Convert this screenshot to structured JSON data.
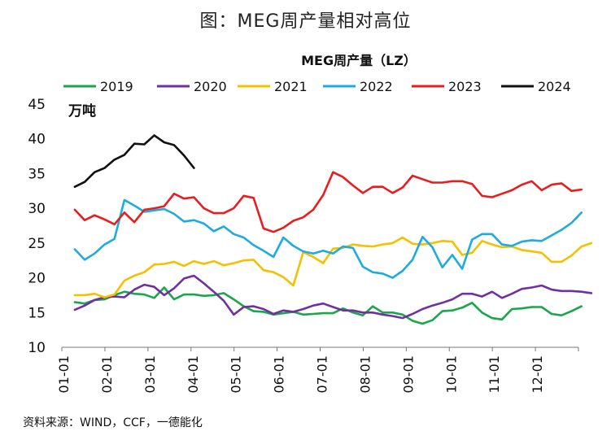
{
  "page_title": "图：MEG周产量相对高位",
  "source": "资料来源：WIND，CCF，一德能化",
  "chart_data": {
    "type": "line",
    "title": "MEG周产量（LZ）",
    "unit": "万吨",
    "ylim": [
      10,
      45
    ],
    "yticks": [
      10,
      15,
      20,
      25,
      30,
      35,
      40,
      45
    ],
    "xlabels": [
      "01-01",
      "02-01",
      "03-01",
      "04-01",
      "05-01",
      "06-01",
      "07-01",
      "08-01",
      "09-01",
      "10-01",
      "11-01",
      "12-01"
    ],
    "x_domain": [
      0,
      12
    ],
    "legend": [
      "2019",
      "2020",
      "2021",
      "2022",
      "2023",
      "2024"
    ],
    "series": [
      {
        "name": "2019",
        "color": "#1aa64a",
        "values": [
          16.5,
          16.3,
          16.8,
          16.9,
          17.5,
          18.0,
          17.7,
          17.6,
          17.1,
          18.6,
          16.9,
          17.6,
          17.6,
          17.4,
          17.5,
          17.8,
          16.9,
          15.9,
          15.2,
          15.1,
          14.7,
          14.9,
          15.1,
          14.7,
          14.8,
          14.9,
          14.9,
          15.6,
          15.0,
          14.6,
          15.9,
          15.0,
          15.0,
          14.7,
          13.8,
          13.4,
          13.9,
          15.2,
          15.3,
          15.7,
          16.4,
          15.0,
          14.2,
          14.0,
          15.5,
          15.6,
          15.8,
          15.8,
          14.8,
          14.6,
          15.2,
          15.9
        ]
      },
      {
        "name": "2020",
        "color": "#7030a0",
        "values": [
          15.4,
          16.0,
          16.8,
          17.2,
          17.3,
          17.2,
          18.3,
          19.0,
          18.7,
          17.5,
          18.5,
          19.9,
          20.3,
          19.2,
          18.0,
          16.7,
          14.7,
          15.8,
          15.9,
          15.5,
          14.8,
          15.3,
          15.1,
          15.5,
          16.0,
          16.3,
          15.8,
          15.3,
          15.3,
          15.0,
          15.0,
          14.7,
          14.5,
          14.2,
          14.8,
          15.5,
          16.0,
          16.4,
          16.9,
          17.7,
          17.7,
          17.3,
          18.0,
          17.1,
          17.7,
          18.4,
          18.6,
          18.9,
          18.3,
          18.1,
          18.1,
          18.0,
          17.8
        ]
      },
      {
        "name": "2021",
        "color": "#f5c000",
        "values": [
          17.5,
          17.5,
          17.7,
          17.2,
          17.6,
          19.6,
          20.3,
          20.8,
          21.9,
          22.0,
          22.3,
          21.7,
          22.4,
          22.0,
          22.4,
          21.8,
          22.1,
          22.5,
          22.6,
          21.1,
          20.8,
          20.1,
          18.9,
          23.7,
          23.0,
          22.1,
          24.2,
          24.3,
          24.8,
          24.6,
          24.5,
          24.8,
          25.0,
          25.8,
          24.9,
          24.8,
          25.0,
          25.3,
          25.2,
          23.3,
          23.6,
          25.3,
          24.8,
          24.4,
          24.5,
          24.0,
          23.8,
          23.6,
          22.3,
          22.3,
          23.2,
          24.5,
          25.0
        ]
      },
      {
        "name": "2022",
        "color": "#1eabe0",
        "values": [
          24.1,
          22.6,
          23.5,
          24.8,
          25.6,
          31.2,
          30.4,
          29.5,
          29.7,
          29.9,
          29.2,
          28.1,
          28.3,
          27.8,
          26.7,
          27.4,
          26.3,
          25.8,
          24.7,
          23.9,
          23.0,
          25.8,
          24.6,
          23.8,
          23.5,
          23.9,
          23.5,
          24.5,
          24.3,
          21.6,
          20.8,
          20.6,
          20.0,
          21.0,
          22.6,
          25.9,
          24.4,
          21.5,
          23.3,
          21.3,
          25.5,
          26.3,
          26.3,
          24.8,
          24.6,
          25.2,
          25.4,
          25.3,
          26.1,
          26.9,
          27.9,
          29.4
        ]
      },
      {
        "name": "2023",
        "color": "#e81e1e",
        "values": [
          29.8,
          28.3,
          29.0,
          28.4,
          27.7,
          29.4,
          28.0,
          29.8,
          30.0,
          30.3,
          32.1,
          31.4,
          31.6,
          30.0,
          29.3,
          29.3,
          30.0,
          31.8,
          31.5,
          27.1,
          26.6,
          27.2,
          28.2,
          28.7,
          29.8,
          31.9,
          35.2,
          34.5,
          33.3,
          32.2,
          33.1,
          33.1,
          32.2,
          33.0,
          34.7,
          34.2,
          33.7,
          33.7,
          33.9,
          33.9,
          33.5,
          31.8,
          31.6,
          32.1,
          32.6,
          33.4,
          33.9,
          32.6,
          33.4,
          33.6,
          32.5,
          32.7
        ]
      },
      {
        "name": "2024",
        "color": "#111111",
        "values": [
          33.1,
          33.8,
          35.2,
          35.8,
          37.0,
          37.7,
          39.3,
          39.2,
          40.5,
          39.5,
          39.1,
          37.6,
          35.8
        ]
      }
    ]
  }
}
